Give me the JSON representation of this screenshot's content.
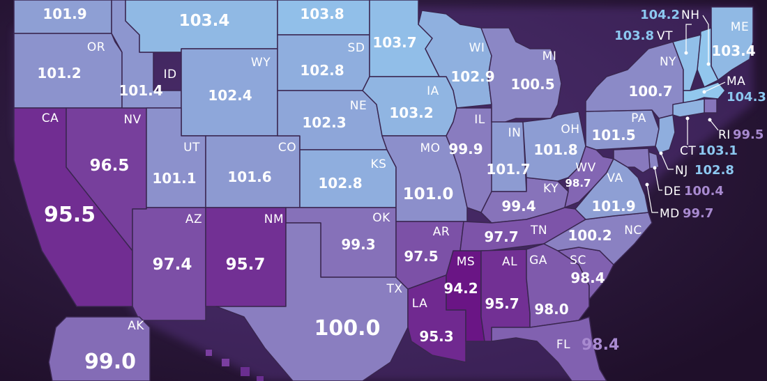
{
  "colors": {
    "background": "#2a1636",
    "scale_low": "#6a1585",
    "scale_mid": "#8a7ec0",
    "scale_high": "#92c8ee"
  },
  "states": {
    "WA": {
      "abbr": "",
      "value": 101.9
    },
    "OR": {
      "abbr": "OR",
      "value": 101.2
    },
    "CA": {
      "abbr": "CA",
      "value": 95.5
    },
    "NV": {
      "abbr": "NV",
      "value": 96.5
    },
    "ID": {
      "abbr": "ID",
      "value": 101.4
    },
    "MT": {
      "abbr": "",
      "value": 103.4
    },
    "WY": {
      "abbr": "WY",
      "value": 102.4
    },
    "UT": {
      "abbr": "UT",
      "value": 101.1
    },
    "CO": {
      "abbr": "CO",
      "value": 101.6
    },
    "AZ": {
      "abbr": "AZ",
      "value": 97.4
    },
    "NM": {
      "abbr": "NM",
      "value": 95.7
    },
    "ND": {
      "abbr": "",
      "value": 103.8
    },
    "SD": {
      "abbr": "SD",
      "value": 102.8
    },
    "NE": {
      "abbr": "NE",
      "value": 102.3
    },
    "KS": {
      "abbr": "KS",
      "value": 102.8
    },
    "OK": {
      "abbr": "OK",
      "value": 99.3
    },
    "TX": {
      "abbr": "TX",
      "value": 100.0
    },
    "MN": {
      "abbr": "",
      "value": 103.7
    },
    "IA": {
      "abbr": "IA",
      "value": 103.2
    },
    "MO": {
      "abbr": "MO",
      "value": 101.0
    },
    "AR": {
      "abbr": "AR",
      "value": 97.5
    },
    "LA": {
      "abbr": "LA",
      "value": 95.3
    },
    "WI": {
      "abbr": "WI",
      "value": 102.9
    },
    "IL": {
      "abbr": "IL",
      "value": 99.9
    },
    "MS": {
      "abbr": "MS",
      "value": 94.2
    },
    "MI": {
      "abbr": "MI",
      "value": 100.5
    },
    "IN": {
      "abbr": "IN",
      "value": 101.7
    },
    "KY": {
      "abbr": "KY",
      "value": 99.4
    },
    "TN": {
      "abbr": "TN",
      "value": 97.7
    },
    "AL": {
      "abbr": "AL",
      "value": 95.7
    },
    "OH": {
      "abbr": "OH",
      "value": 101.8
    },
    "WV": {
      "abbr": "WV",
      "value": 98.7
    },
    "GA": {
      "abbr": "GA",
      "value": 98.0
    },
    "FL": {
      "abbr": "FL",
      "value": 98.4
    },
    "SC": {
      "abbr": "SC",
      "value": 98.4
    },
    "NC": {
      "abbr": "NC",
      "value": 100.2
    },
    "VA": {
      "abbr": "VA",
      "value": 101.9
    },
    "PA": {
      "abbr": "PA",
      "value": 101.5
    },
    "NY": {
      "abbr": "NY",
      "value": 100.7
    },
    "ME": {
      "abbr": "ME",
      "value": 103.4
    },
    "NH": {
      "abbr": "NH",
      "value": 104.2
    },
    "VT": {
      "abbr": "VT",
      "value": 103.8
    },
    "MA": {
      "abbr": "MA",
      "value": 104.3
    },
    "RI": {
      "abbr": "RI",
      "value": 99.5
    },
    "CT": {
      "abbr": "CT",
      "value": 103.1
    },
    "NJ": {
      "abbr": "NJ",
      "value": 102.8
    },
    "DE": {
      "abbr": "DE",
      "value": 100.4
    },
    "MD": {
      "abbr": "MD",
      "value": 99.7
    },
    "AK": {
      "abbr": "AK",
      "value": 99.0
    }
  }
}
